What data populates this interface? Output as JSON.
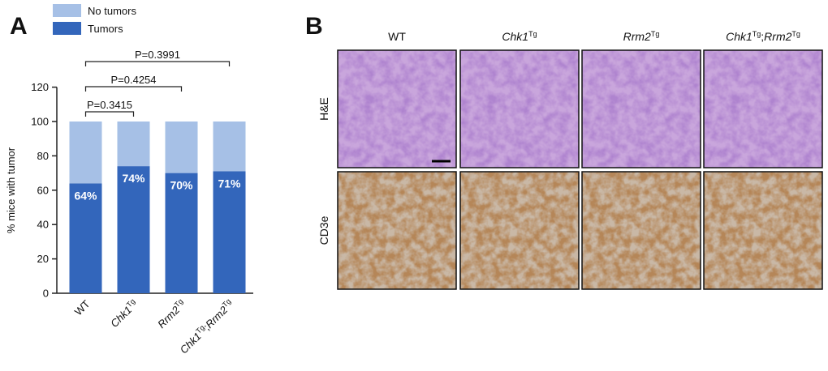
{
  "panel_labels": [
    "A",
    "B"
  ],
  "chart_data": {
    "type": "stacked_bar",
    "y_label": "% mice with tumor",
    "categories": [
      [
        {
          "text": "WT"
        }
      ],
      [
        {
          "text": "Chk1",
          "italic": true
        },
        {
          "text": "Tg",
          "sup": true
        }
      ],
      [
        {
          "text": "Rrm2",
          "italic": true
        },
        {
          "text": "Tg",
          "sup": true
        }
      ],
      [
        {
          "text": "Chk1",
          "italic": true
        },
        {
          "text": "Tg",
          "sup": true
        },
        {
          "text": ";"
        },
        {
          "text": "Rrm2",
          "italic": true
        },
        {
          "text": "Tg",
          "sup": true
        }
      ]
    ],
    "series": [
      {
        "name": "Tumors",
        "color": "#3366bb",
        "values": [
          64,
          74,
          70,
          71
        ],
        "value_labels": [
          "64%",
          "74%",
          "70%",
          "71%"
        ]
      },
      {
        "name": "No tumors",
        "color": "#a6c0e6",
        "values": [
          36,
          26,
          30,
          29
        ]
      }
    ],
    "ylim": [
      0,
      120
    ],
    "yticks": [
      0,
      20,
      40,
      60,
      80,
      100,
      120
    ],
    "annotations": [
      {
        "text": "P=0.3415",
        "from": 0,
        "to": 1
      },
      {
        "text": "P=0.4254",
        "from": 0,
        "to": 2
      },
      {
        "text": "P=0.3991",
        "from": 0,
        "to": 3
      }
    ],
    "legend": "top-left"
  },
  "micrographs": {
    "columns": [
      [
        {
          "text": "WT"
        }
      ],
      [
        {
          "text": "Chk1",
          "italic": true
        },
        {
          "text": "Tg",
          "sup": true
        }
      ],
      [
        {
          "text": "Rrm2",
          "italic": true
        },
        {
          "text": "Tg",
          "sup": true
        }
      ],
      [
        {
          "text": "Chk1",
          "italic": true
        },
        {
          "text": "Tg",
          "sup": true
        },
        {
          "text": ";"
        },
        {
          "text": "Rrm2",
          "italic": true
        },
        {
          "text": "Tg",
          "sup": true
        }
      ]
    ],
    "rows": [
      "H&E",
      "CD3e"
    ]
  }
}
